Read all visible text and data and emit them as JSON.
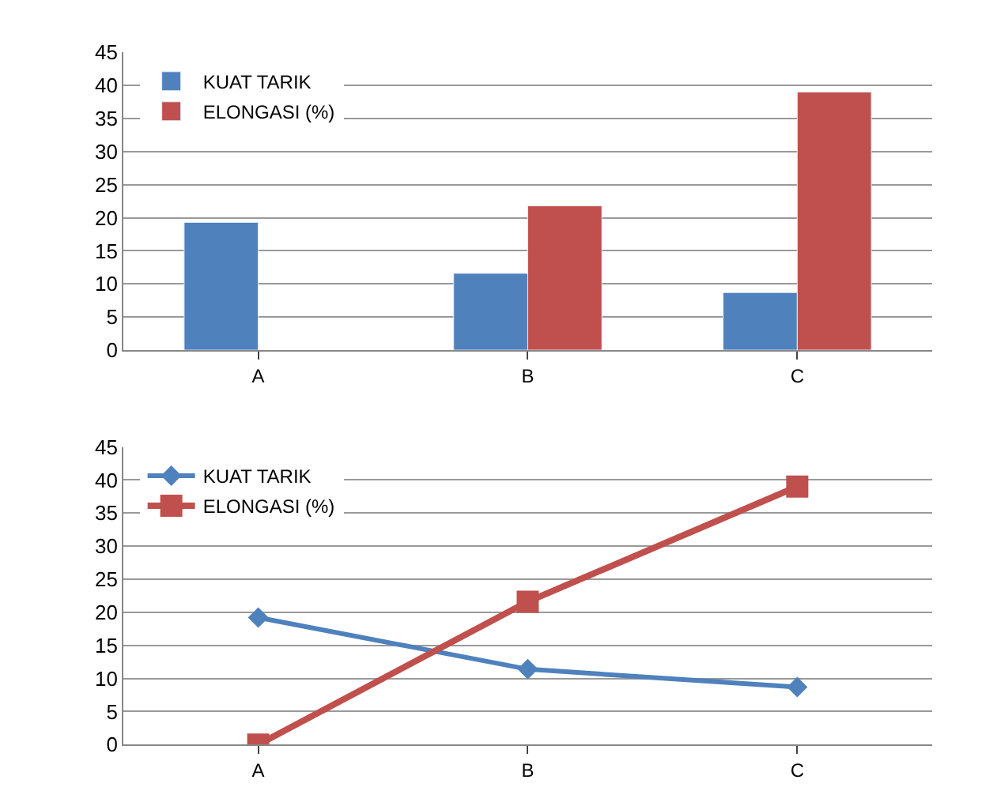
{
  "chart_data": [
    {
      "type": "bar",
      "categories": [
        "A",
        "B",
        "C"
      ],
      "ylim": [
        0,
        45
      ],
      "yticks": [
        0,
        5,
        10,
        15,
        20,
        25,
        30,
        35,
        40,
        45
      ],
      "grid": "y",
      "legend": "top left",
      "series": [
        {
          "name": "KUAT TARIK",
          "color": "#4f81bd",
          "values": [
            19.3,
            11.6,
            8.7
          ]
        },
        {
          "name": "ELONGASI (%)",
          "color": "#c0504d",
          "values": [
            null,
            21.8,
            39
          ]
        }
      ]
    },
    {
      "type": "line",
      "categories": [
        "A",
        "B",
        "C"
      ],
      "ylim": [
        0,
        45
      ],
      "yticks": [
        0,
        5,
        10,
        15,
        20,
        25,
        30,
        35,
        40,
        45
      ],
      "grid": "y",
      "legend": "top left",
      "series": [
        {
          "name": "KUAT TARIK",
          "color": "#4f81bd",
          "marker": "diamond",
          "values": [
            19.2,
            11.4,
            8.7
          ]
        },
        {
          "name": "ELONGASI (%)",
          "color": "#c0504d",
          "marker": "square",
          "values": [
            0,
            21.6,
            39
          ]
        }
      ]
    }
  ]
}
